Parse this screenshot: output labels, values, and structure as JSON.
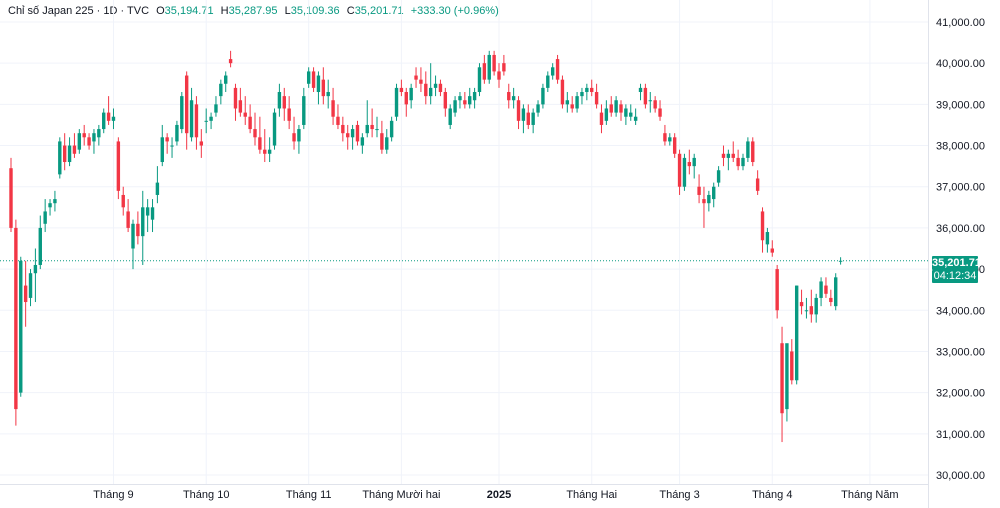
{
  "legend": {
    "symbol": "Chỉ số Japan 225 · 1D · TVC",
    "o_label": "O",
    "o_value": "35,194.71",
    "h_label": "H",
    "h_value": "35,287.95",
    "l_label": "L",
    "l_value": "35,109.36",
    "c_label": "C",
    "c_value": "35,201.71",
    "change": "+333.30 (+0.96%)"
  },
  "last_price_tag": {
    "price": "35,201.71",
    "countdown": "04:12:34"
  },
  "colors": {
    "up": "#089981",
    "down": "#f23645",
    "grid": "#f0f3fa",
    "axis_border": "#e0e3eb"
  },
  "chart_data": {
    "type": "candlestick",
    "title": "",
    "ylim": [
      29700,
      41300
    ],
    "y_ticks": [
      30000,
      31000,
      32000,
      33000,
      34000,
      35000,
      36000,
      37000,
      38000,
      39000,
      40000,
      41000
    ],
    "y_tick_labels": [
      "30,000.00",
      "31,000.00",
      "32,000.00",
      "33,000.00",
      "34,000.00",
      "35,000.00",
      "36,000.00",
      "37,000.00",
      "38,000.00",
      "39,000.00",
      "40,000.00",
      "41,000.00"
    ],
    "x_tick_labels": [
      {
        "label": "Tháng 9",
        "index": 21
      },
      {
        "label": "Tháng 10",
        "index": 40
      },
      {
        "label": "Tháng 11",
        "index": 61
      },
      {
        "label": "Tháng Mười hai",
        "index": 80
      },
      {
        "label": "2025",
        "index": 100,
        "bold": true
      },
      {
        "label": "Tháng Hai",
        "index": 119
      },
      {
        "label": "Tháng 3",
        "index": 137
      },
      {
        "label": "Tháng 4",
        "index": 156
      },
      {
        "label": "Tháng Năm",
        "index": 176
      }
    ],
    "last_price": 35201.71,
    "candles": [
      [
        37450,
        37700,
        35900,
        36000
      ],
      [
        36000,
        36200,
        31200,
        31600
      ],
      [
        32000,
        35300,
        31900,
        35200
      ],
      [
        34600,
        35200,
        33600,
        34200
      ],
      [
        34300,
        35000,
        34100,
        34900
      ],
      [
        34900,
        35500,
        34200,
        35100
      ],
      [
        35100,
        36300,
        35000,
        36000
      ],
      [
        36100,
        36700,
        35900,
        36400
      ],
      [
        36500,
        36700,
        36300,
        36600
      ],
      [
        36600,
        36900,
        36400,
        36700
      ],
      [
        37300,
        38200,
        37200,
        38100
      ],
      [
        38000,
        38300,
        37400,
        37600
      ],
      [
        37600,
        38200,
        37500,
        38000
      ],
      [
        38000,
        38300,
        37700,
        37800
      ],
      [
        37900,
        38400,
        37800,
        38300
      ],
      [
        38300,
        38500,
        38000,
        38200
      ],
      [
        38200,
        38300,
        37900,
        38000
      ],
      [
        38100,
        38400,
        37800,
        38300
      ],
      [
        38200,
        38500,
        38000,
        38400
      ],
      [
        38400,
        38900,
        38300,
        38800
      ],
      [
        38800,
        39200,
        38500,
        38600
      ],
      [
        38600,
        38900,
        38400,
        38700
      ],
      [
        38100,
        38200,
        36700,
        36900
      ],
      [
        36800,
        37000,
        36300,
        36500
      ],
      [
        36400,
        36700,
        35900,
        36000
      ],
      [
        35500,
        36200,
        35000,
        36100
      ],
      [
        36100,
        36400,
        35600,
        35800
      ],
      [
        35800,
        36900,
        35100,
        36500
      ],
      [
        36300,
        36700,
        35900,
        36500
      ],
      [
        36200,
        36700,
        35900,
        36500
      ],
      [
        36800,
        37500,
        36600,
        37100
      ],
      [
        37600,
        38500,
        37500,
        38200
      ],
      [
        38200,
        38300,
        37800,
        38100
      ],
      [
        38000,
        38200,
        37700,
        38000
      ],
      [
        38100,
        38600,
        38000,
        38500
      ],
      [
        38400,
        39300,
        38300,
        39200
      ],
      [
        39700,
        39800,
        37900,
        38300
      ],
      [
        38200,
        39400,
        38100,
        39100
      ],
      [
        39000,
        39200,
        37900,
        38200
      ],
      [
        38100,
        38400,
        37700,
        38000
      ],
      [
        38600,
        38900,
        38300,
        38600
      ],
      [
        38600,
        38800,
        38400,
        38700
      ],
      [
        38800,
        39200,
        38700,
        39000
      ],
      [
        39200,
        39600,
        39000,
        39500
      ],
      [
        39500,
        39800,
        39300,
        39700
      ],
      [
        40100,
        40300,
        39900,
        40000
      ],
      [
        39400,
        39500,
        38600,
        38900
      ],
      [
        39100,
        39400,
        38700,
        38800
      ],
      [
        38800,
        39200,
        38500,
        38700
      ],
      [
        38700,
        39000,
        38300,
        38400
      ],
      [
        38400,
        38800,
        38000,
        38200
      ],
      [
        38200,
        38700,
        37800,
        37900
      ],
      [
        37900,
        38400,
        37600,
        37800
      ],
      [
        37800,
        38200,
        37600,
        37900
      ],
      [
        38000,
        38900,
        37900,
        38800
      ],
      [
        38900,
        39500,
        38700,
        39300
      ],
      [
        39200,
        39400,
        38600,
        38900
      ],
      [
        38900,
        39200,
        38400,
        38600
      ],
      [
        38300,
        38700,
        37900,
        38100
      ],
      [
        38100,
        38500,
        37800,
        38400
      ],
      [
        38500,
        39400,
        38400,
        39200
      ],
      [
        39500,
        39900,
        39400,
        39800
      ],
      [
        39800,
        39900,
        39300,
        39400
      ],
      [
        39300,
        39800,
        39000,
        39700
      ],
      [
        39600,
        39900,
        39000,
        39200
      ],
      [
        39200,
        39600,
        38900,
        39300
      ],
      [
        39100,
        39400,
        38500,
        38700
      ],
      [
        38700,
        39000,
        38400,
        38500
      ],
      [
        38500,
        38700,
        38100,
        38300
      ],
      [
        38300,
        38500,
        37900,
        38200
      ],
      [
        38200,
        38500,
        37900,
        38400
      ],
      [
        38500,
        38600,
        38000,
        38100
      ],
      [
        38000,
        38300,
        37800,
        38200
      ],
      [
        38300,
        39100,
        38200,
        38500
      ],
      [
        38500,
        38900,
        38200,
        38400
      ],
      [
        38400,
        38700,
        38200,
        38400
      ],
      [
        38300,
        38600,
        37800,
        37900
      ],
      [
        37900,
        38400,
        37800,
        38200
      ],
      [
        38200,
        38700,
        38100,
        38600
      ],
      [
        38700,
        39500,
        38600,
        39400
      ],
      [
        39400,
        39600,
        39200,
        39300
      ],
      [
        39300,
        39400,
        38700,
        39000
      ],
      [
        39100,
        39500,
        38900,
        39400
      ],
      [
        39700,
        39900,
        39400,
        39600
      ],
      [
        39600,
        39900,
        39300,
        39500
      ],
      [
        39500,
        39800,
        39000,
        39200
      ],
      [
        39200,
        40000,
        39000,
        39400
      ],
      [
        39400,
        39700,
        39200,
        39500
      ],
      [
        39500,
        39600,
        39200,
        39300
      ],
      [
        39300,
        39400,
        38700,
        38900
      ],
      [
        38500,
        39000,
        38400,
        38900
      ],
      [
        38800,
        39200,
        38700,
        39100
      ],
      [
        39100,
        39300,
        38900,
        39200
      ],
      [
        39100,
        39300,
        38900,
        39000
      ],
      [
        39000,
        39400,
        38900,
        39200
      ],
      [
        39100,
        39400,
        38900,
        39300
      ],
      [
        39300,
        40000,
        39200,
        39900
      ],
      [
        40000,
        40200,
        39500,
        39600
      ],
      [
        39600,
        40300,
        39500,
        40200
      ],
      [
        40200,
        40300,
        39700,
        39800
      ],
      [
        39800,
        40000,
        39400,
        39600
      ],
      [
        40000,
        40200,
        39700,
        39800
      ],
      [
        39300,
        39500,
        38900,
        39100
      ],
      [
        39100,
        39400,
        38900,
        39200
      ],
      [
        39100,
        39200,
        38400,
        38600
      ],
      [
        38600,
        39000,
        38300,
        38900
      ],
      [
        38800,
        39000,
        38400,
        38500
      ],
      [
        38500,
        38900,
        38300,
        38800
      ],
      [
        38800,
        39100,
        38700,
        39000
      ],
      [
        39000,
        39500,
        38900,
        39400
      ],
      [
        39400,
        39800,
        39300,
        39700
      ],
      [
        39700,
        40000,
        39600,
        39900
      ],
      [
        40100,
        40200,
        39500,
        39600
      ],
      [
        39600,
        39700,
        38900,
        39000
      ],
      [
        39000,
        39300,
        38800,
        39100
      ],
      [
        39000,
        39200,
        38800,
        38900
      ],
      [
        38900,
        39300,
        38800,
        39200
      ],
      [
        39200,
        39400,
        39000,
        39300
      ],
      [
        39300,
        39500,
        39100,
        39400
      ],
      [
        39400,
        39600,
        39200,
        39300
      ],
      [
        39300,
        39500,
        38900,
        39000
      ],
      [
        38800,
        39000,
        38300,
        38500
      ],
      [
        38600,
        39100,
        38500,
        38900
      ],
      [
        39000,
        39200,
        38700,
        38800
      ],
      [
        38800,
        39200,
        38700,
        39100
      ],
      [
        39000,
        39100,
        38600,
        38800
      ],
      [
        38700,
        39000,
        38500,
        38900
      ],
      [
        38700,
        39000,
        38600,
        38800
      ],
      [
        38600,
        38900,
        38500,
        38700
      ],
      [
        39300,
        39500,
        39100,
        39400
      ],
      [
        39400,
        39500,
        38900,
        39000
      ],
      [
        39100,
        39300,
        38800,
        39100
      ],
      [
        39100,
        39200,
        38800,
        38900
      ],
      [
        38900,
        39100,
        38600,
        38700
      ],
      [
        38300,
        38500,
        38000,
        38100
      ],
      [
        38100,
        38300,
        38000,
        38200
      ],
      [
        38200,
        38300,
        37700,
        37800
      ],
      [
        37800,
        37900,
        36800,
        37000
      ],
      [
        37000,
        37800,
        36900,
        37700
      ],
      [
        37600,
        37900,
        37300,
        37500
      ],
      [
        37500,
        37800,
        37200,
        37700
      ],
      [
        37000,
        37300,
        36600,
        36800
      ],
      [
        36700,
        37000,
        36000,
        36600
      ],
      [
        36600,
        36900,
        36400,
        36800
      ],
      [
        36700,
        37100,
        36500,
        37000
      ],
      [
        37100,
        37500,
        37000,
        37400
      ],
      [
        37800,
        38000,
        37500,
        37700
      ],
      [
        37700,
        37900,
        37400,
        37800
      ],
      [
        37800,
        38100,
        37600,
        37700
      ],
      [
        37700,
        37900,
        37400,
        37500
      ],
      [
        37500,
        37800,
        37400,
        37700
      ],
      [
        37700,
        38200,
        37600,
        38100
      ],
      [
        38100,
        38200,
        37500,
        37600
      ],
      [
        37200,
        37400,
        36800,
        36900
      ],
      [
        36400,
        36500,
        35400,
        35700
      ],
      [
        35600,
        36000,
        35400,
        35900
      ],
      [
        35500,
        35700,
        35300,
        35400
      ],
      [
        35000,
        35100,
        33800,
        34000
      ],
      [
        33200,
        33600,
        30800,
        31500
      ],
      [
        31600,
        33100,
        31300,
        33200
      ],
      [
        33000,
        33300,
        32200,
        32300
      ],
      [
        32300,
        34600,
        32200,
        34600
      ],
      [
        34200,
        34500,
        33900,
        34100
      ],
      [
        34000,
        34300,
        33800,
        34000
      ],
      [
        34100,
        34500,
        33700,
        33900
      ],
      [
        33900,
        34400,
        33700,
        34300
      ],
      [
        34300,
        34800,
        34100,
        34700
      ],
      [
        34600,
        34800,
        34300,
        34400
      ],
      [
        34300,
        34500,
        34100,
        34200
      ],
      [
        34100,
        34900,
        34000,
        34800
      ],
      [
        35194.71,
        35287.95,
        35109.36,
        35201.71
      ]
    ]
  }
}
